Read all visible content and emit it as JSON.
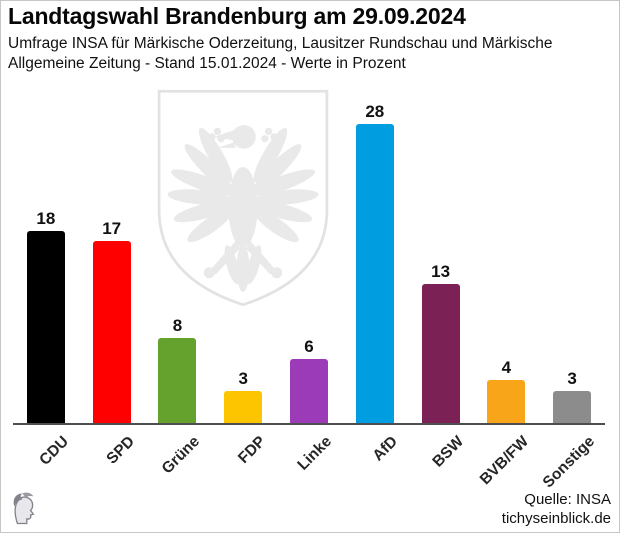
{
  "header": {
    "title": "Landtagswahl Brandenburg am 29.09.2024",
    "subtitle": "Umfrage INSA für Märkische Oderzeitung, Lausitzer Rundschau und Märkische\nAllgemeine Zeitung - Stand 15.01.2024 - Werte in Prozent"
  },
  "chart_data": {
    "type": "bar",
    "title": "Landtagswahl Brandenburg am 29.09.2024",
    "subtitle": "Umfrage INSA für Märkische Oderzeitung, Lausitzer Rundschau und Märkische Allgemeine Zeitung - Stand 15.01.2024 - Werte in Prozent",
    "categories": [
      "CDU",
      "SPD",
      "Grüne",
      "FDP",
      "Linke",
      "AfD",
      "BSW",
      "BVB/FW",
      "Sonstige"
    ],
    "values": [
      18,
      17,
      8,
      3,
      6,
      28,
      13,
      4,
      3
    ],
    "colors": [
      "#000000",
      "#FE0000",
      "#64A12D",
      "#FDC500",
      "#9B3BB8",
      "#009DE0",
      "#7B2155",
      "#F9A51A",
      "#8C8C8C"
    ],
    "xlabel": "",
    "ylabel": "",
    "ylim": [
      0,
      30
    ],
    "unit": "Prozent",
    "grid": false,
    "legend_position": "none",
    "value_labels": true,
    "xlabel_rotation_deg": 45
  },
  "watermark": {
    "name": "brandenburg-coat-of-arms-eagle",
    "color": "#e9e9e9",
    "outline_color": "#e2e2e2"
  },
  "footer": {
    "source_line1": "Quelle: INSA",
    "source_line2": "tichyseinblick.de",
    "logo": "tichys-einblick-head-logo"
  }
}
